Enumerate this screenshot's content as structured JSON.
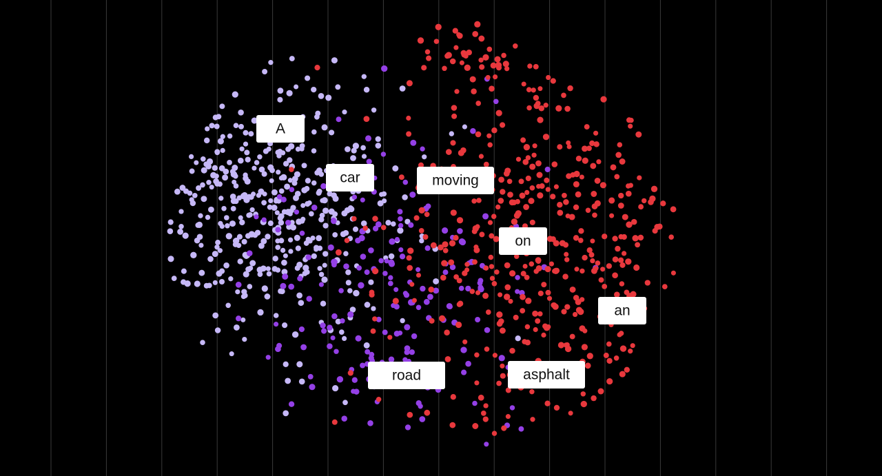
{
  "labels": [
    "A",
    "car",
    "moving",
    "on",
    "an",
    "road",
    "asphalt"
  ]
}
